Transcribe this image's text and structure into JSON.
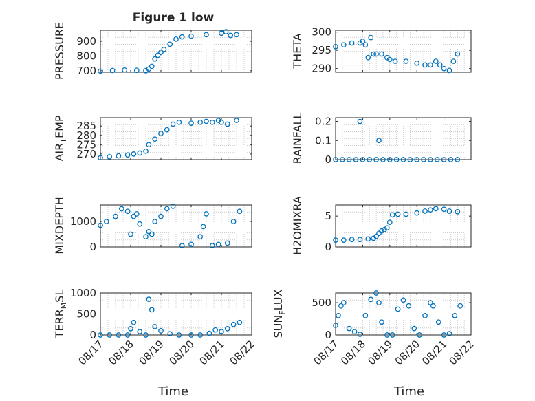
{
  "figure": {
    "title": "Figure 1 low"
  },
  "colors": {
    "marker": "#0072BD",
    "axis": "#262626",
    "grid": "#b0b0b0",
    "background": "#ffffff"
  },
  "chart_data": [
    {
      "type": "scatter",
      "id": "pressure",
      "ylabel": "PRESSURE",
      "ylim": [
        690,
        975
      ],
      "yticks": [
        700,
        800,
        900
      ],
      "yticklabels": [
        "700",
        "800",
        "900"
      ],
      "xlim": [
        0,
        5
      ],
      "grid": true,
      "x": [
        0,
        0.4,
        0.8,
        1.2,
        1.5,
        1.6,
        1.7,
        1.8,
        1.9,
        2.0,
        2.1,
        2.3,
        2.5,
        2.7,
        3.0,
        3.5,
        4.0,
        4.15,
        4.3,
        4.5
      ],
      "y": [
        698,
        702,
        705,
        703,
        700,
        712,
        730,
        780,
        805,
        825,
        845,
        880,
        915,
        930,
        935,
        945,
        955,
        965,
        940,
        945
      ]
    },
    {
      "type": "scatter",
      "id": "theta",
      "ylabel": "THETA",
      "ylim": [
        289,
        300.5
      ],
      "yticks": [
        290,
        295,
        300
      ],
      "yticklabels": [
        "290",
        "295",
        "300"
      ],
      "xlim": [
        0,
        5
      ],
      "grid": true,
      "x": [
        0,
        0.3,
        0.6,
        0.9,
        1.0,
        1.1,
        1.2,
        1.3,
        1.4,
        1.5,
        1.7,
        1.9,
        2.0,
        2.2,
        2.6,
        3.0,
        3.3,
        3.5,
        3.7,
        3.85,
        4.0,
        4.2,
        4.35,
        4.5
      ],
      "y": [
        296,
        296.5,
        297,
        297,
        297.5,
        296.5,
        293,
        298.5,
        294,
        294,
        294,
        293,
        292.5,
        292,
        292,
        291.5,
        291,
        291,
        292,
        291,
        290,
        289.5,
        292,
        294
      ]
    },
    {
      "type": "scatter",
      "id": "air_temp",
      "ylabel": "AIR_TEMP",
      "ylim": [
        267,
        289.5
      ],
      "yticks": [
        270,
        275,
        280,
        285
      ],
      "yticklabels": [
        "270",
        "275",
        "280",
        "285"
      ],
      "xlim": [
        0,
        5
      ],
      "grid": true,
      "x": [
        0,
        0.3,
        0.6,
        0.9,
        1.1,
        1.3,
        1.5,
        1.6,
        1.8,
        2.0,
        2.2,
        2.4,
        2.6,
        3.0,
        3.3,
        3.5,
        3.7,
        3.9,
        4.0,
        4.2,
        4.5
      ],
      "y": [
        268,
        268.5,
        269,
        269.5,
        270,
        270.5,
        271.5,
        275,
        278,
        281,
        283,
        286,
        287,
        286.5,
        287,
        287.5,
        287,
        288,
        287,
        286,
        288
      ]
    },
    {
      "type": "scatter",
      "id": "rainfall",
      "ylabel": "RAINFALL",
      "ylim": [
        0,
        0.22
      ],
      "yticks": [
        0,
        0.1,
        0.2
      ],
      "yticklabels": [
        "0",
        "0.1",
        "0.2"
      ],
      "xlim": [
        0,
        5
      ],
      "grid": true,
      "x": [
        0,
        0.25,
        0.5,
        0.75,
        1.0,
        1.25,
        1.5,
        1.75,
        2.0,
        2.25,
        2.5,
        2.75,
        3.0,
        3.25,
        3.5,
        3.75,
        4.0,
        4.25,
        4.5,
        0.9,
        1.6
      ],
      "y": [
        0,
        0,
        0,
        0,
        0,
        0,
        0,
        0,
        0,
        0,
        0,
        0,
        0,
        0,
        0,
        0,
        0,
        0,
        0,
        0.2,
        0.1
      ]
    },
    {
      "type": "scatter",
      "id": "mixdepth",
      "ylabel": "MIXDEPTH",
      "ylim": [
        0,
        1650
      ],
      "yticks": [
        0,
        1000
      ],
      "yticklabels": [
        "0",
        "1000"
      ],
      "xlim": [
        0,
        5
      ],
      "grid": true,
      "x": [
        0,
        0.2,
        0.5,
        0.7,
        0.9,
        1.0,
        1.1,
        1.2,
        1.3,
        1.5,
        1.6,
        1.7,
        1.8,
        2.0,
        2.2,
        2.4,
        2.7,
        3.0,
        3.3,
        3.4,
        3.5,
        3.7,
        3.9,
        4.2,
        4.4,
        4.6
      ],
      "y": [
        850,
        1000,
        1200,
        1500,
        1400,
        500,
        1200,
        1300,
        900,
        400,
        600,
        500,
        1000,
        1200,
        1500,
        1600,
        50,
        100,
        400,
        800,
        1300,
        50,
        100,
        150,
        1000,
        1400
      ]
    },
    {
      "type": "scatter",
      "id": "h2omixra",
      "ylabel": "H2OMIXRA",
      "ylim": [
        0,
        6.8
      ],
      "yticks": [
        0,
        5
      ],
      "yticklabels": [
        "0",
        "5"
      ],
      "xlim": [
        0,
        5
      ],
      "grid": true,
      "x": [
        0,
        0.3,
        0.6,
        0.9,
        1.2,
        1.4,
        1.5,
        1.6,
        1.7,
        1.8,
        1.9,
        2.0,
        2.1,
        2.3,
        2.6,
        3.0,
        3.3,
        3.5,
        3.7,
        4.0,
        4.2,
        4.5
      ],
      "y": [
        1.1,
        1.1,
        1.2,
        1.2,
        1.3,
        1.4,
        1.7,
        2.2,
        2.6,
        2.8,
        3.1,
        4.0,
        5.2,
        5.3,
        5.3,
        5.5,
        5.8,
        6.0,
        6.2,
        6.1,
        5.8,
        5.7
      ]
    },
    {
      "type": "scatter",
      "id": "terr_msl",
      "ylabel": "TERR_MSL",
      "ylim": [
        0,
        1000
      ],
      "yticks": [
        0,
        500,
        1000
      ],
      "yticklabels": [
        "0",
        "500",
        "1000"
      ],
      "xlim": [
        0,
        5
      ],
      "grid": true,
      "x": [
        0,
        0.3,
        0.6,
        0.9,
        1.0,
        1.1,
        1.3,
        1.5,
        1.6,
        1.7,
        1.8,
        2.0,
        2.3,
        2.6,
        3.0,
        3.3,
        3.6,
        3.8,
        4.0,
        4.2,
        4.4,
        4.6
      ],
      "y": [
        0,
        0,
        0,
        0,
        150,
        300,
        80,
        0,
        850,
        600,
        200,
        100,
        30,
        0,
        0,
        0,
        40,
        120,
        80,
        150,
        250,
        300
      ]
    },
    {
      "type": "scatter",
      "id": "sun_flux",
      "ylabel": "SUN_FLUX",
      "ylim": [
        0,
        650
      ],
      "yticks": [
        0,
        500
      ],
      "yticklabels": [
        "0",
        "500"
      ],
      "xlim": [
        0,
        5
      ],
      "grid": true,
      "x": [
        0,
        0.1,
        0.2,
        0.3,
        0.5,
        0.7,
        0.9,
        1.1,
        1.3,
        1.5,
        1.6,
        1.7,
        1.9,
        2.1,
        2.3,
        2.5,
        2.7,
        2.9,
        3.1,
        3.3,
        3.5,
        3.6,
        3.8,
        4.0,
        4.2,
        4.4,
        4.6
      ],
      "y": [
        150,
        300,
        450,
        500,
        100,
        50,
        10,
        300,
        550,
        650,
        500,
        200,
        0,
        0,
        400,
        540,
        450,
        100,
        0,
        300,
        500,
        450,
        200,
        0,
        20,
        300,
        450
      ]
    }
  ],
  "xaxis": {
    "xticks": [
      0,
      1,
      2,
      3,
      4,
      5
    ],
    "xticklabels": [
      "08/17",
      "08/18",
      "08/19",
      "08/20",
      "08/21",
      "08/22"
    ],
    "xlabel": "Time"
  }
}
